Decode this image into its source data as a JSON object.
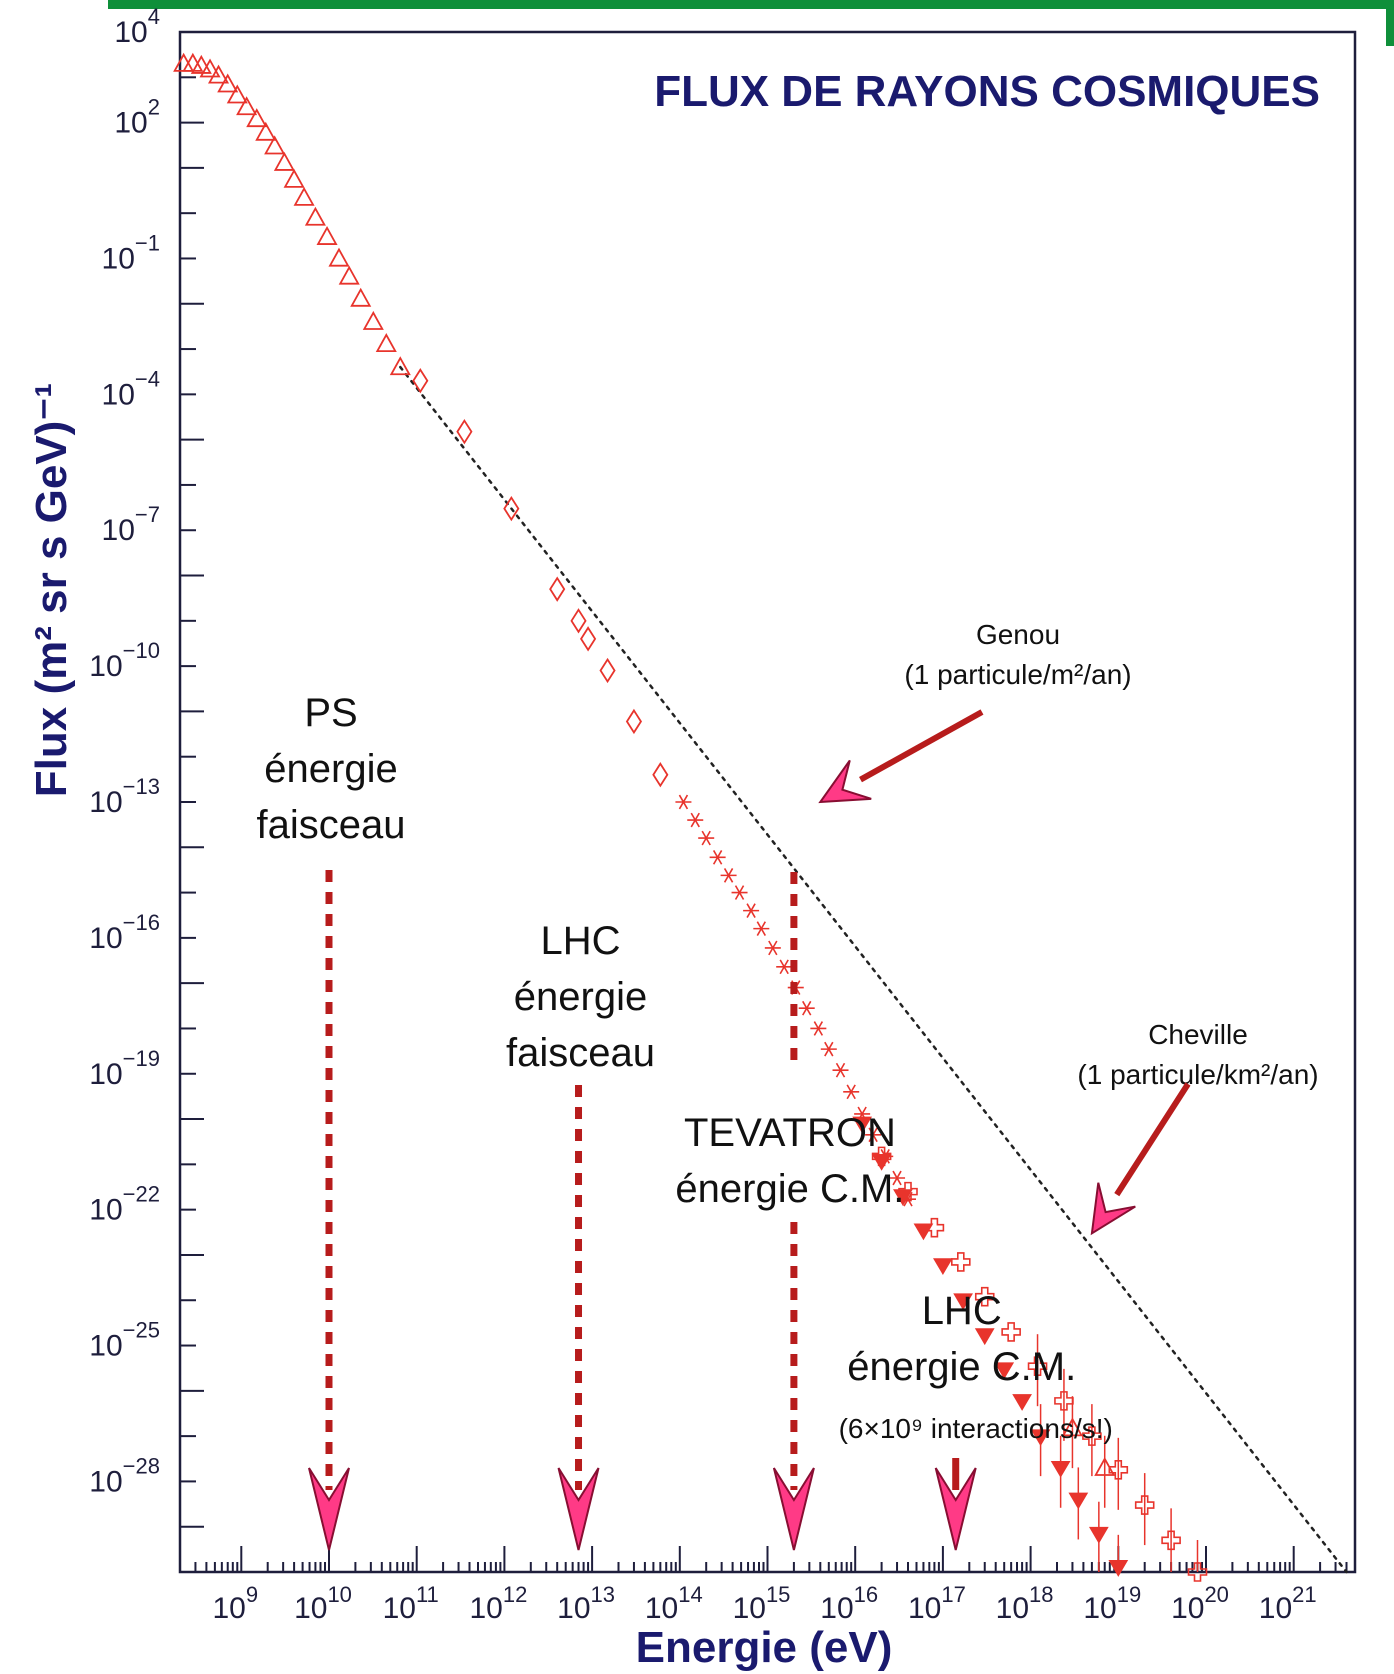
{
  "chart_data": {
    "type": "scatter",
    "title": "FLUX DE RAYONS COSMIQUES",
    "xlabel": "Energie (eV)",
    "ylabel": "Flux (m² sr s GeV)⁻¹",
    "x_scale": "log",
    "y_scale": "log",
    "xlim": [
      200000000.0,
      5e+21
    ],
    "ylim": [
      1e-30,
      10000.0
    ],
    "grid": false,
    "colors": {
      "frame": "#1e1e3c",
      "title": "#1a1a6e",
      "data": "#e8342c",
      "fit": "#222222",
      "dashed_arrow": "#b71c1c",
      "arrow_fill": "#ff3a86",
      "arrow_stroke": "#880e32",
      "top_band": "#0f8f3a"
    },
    "x_ticks": [
      {
        "base": "10",
        "exp": "9",
        "value": 1000000000.0
      },
      {
        "base": "10",
        "exp": "10",
        "value": 10000000000.0
      },
      {
        "base": "10",
        "exp": "11",
        "value": 100000000000.0
      },
      {
        "base": "10",
        "exp": "12",
        "value": 1000000000000.0
      },
      {
        "base": "10",
        "exp": "13",
        "value": 10000000000000.0
      },
      {
        "base": "10",
        "exp": "14",
        "value": 100000000000000.0
      },
      {
        "base": "10",
        "exp": "15",
        "value": 1000000000000000.0
      },
      {
        "base": "10",
        "exp": "16",
        "value": 1e+16
      },
      {
        "base": "10",
        "exp": "17",
        "value": 1e+17
      },
      {
        "base": "10",
        "exp": "18",
        "value": 1e+18
      },
      {
        "base": "10",
        "exp": "19",
        "value": 1e+19
      },
      {
        "base": "10",
        "exp": "20",
        "value": 1e+20
      },
      {
        "base": "10",
        "exp": "21",
        "value": 1e+21
      }
    ],
    "y_ticks": [
      {
        "base": "10",
        "exp": "4",
        "value": 10000.0
      },
      {
        "base": "10",
        "exp": "2",
        "value": 100.0
      },
      {
        "base": "10",
        "exp": "−1",
        "value": 0.1
      },
      {
        "base": "10",
        "exp": "−4",
        "value": 0.0001
      },
      {
        "base": "10",
        "exp": "−7",
        "value": 1e-07
      },
      {
        "base": "10",
        "exp": "−10",
        "value": 1e-10
      },
      {
        "base": "10",
        "exp": "−13",
        "value": 1e-13
      },
      {
        "base": "10",
        "exp": "−16",
        "value": 1e-16
      },
      {
        "base": "10",
        "exp": "−19",
        "value": 1e-19
      },
      {
        "base": "10",
        "exp": "−22",
        "value": 1e-22
      },
      {
        "base": "10",
        "exp": "−25",
        "value": 1e-25
      },
      {
        "base": "10",
        "exp": "−28",
        "value": 1e-28
      }
    ],
    "series": [
      {
        "marker": "triangle-open",
        "points": [
          [
            220000000.0,
            2000
          ],
          [
            280000000.0,
            2000
          ],
          [
            350000000.0,
            1800
          ],
          [
            440000000.0,
            1500
          ],
          [
            550000000.0,
            1100
          ],
          [
            700000000.0,
            700
          ],
          [
            900000000.0,
            400
          ],
          [
            1150000000.0,
            220
          ],
          [
            1500000000.0,
            120
          ],
          [
            1900000000.0,
            60
          ],
          [
            2400000000.0,
            30
          ],
          [
            3100000000.0,
            13
          ],
          [
            4000000000.0,
            5.5
          ],
          [
            5200000000.0,
            2.2
          ],
          [
            7000000000.0,
            0.8
          ],
          [
            9500000000.0,
            0.3
          ],
          [
            13000000000.0,
            0.1
          ],
          [
            17000000000.0,
            0.04
          ],
          [
            23000000000.0,
            0.013
          ],
          [
            32000000000.0,
            0.004
          ],
          [
            45000000000.0,
            0.0013
          ],
          [
            65000000000.0,
            0.0004
          ]
        ]
      },
      {
        "marker": "diamond-open",
        "points": [
          [
            110000000000.0,
            0.0002
          ],
          [
            350000000000.0,
            1.5e-05
          ],
          [
            1200000000000.0,
            3e-07
          ],
          [
            4000000000000.0,
            5e-09
          ],
          [
            7000000000000.0,
            1e-09
          ],
          [
            9000000000000.0,
            4e-10
          ],
          [
            15000000000000.0,
            8e-11
          ],
          [
            30000000000000.0,
            6e-12
          ],
          [
            60000000000000.0,
            4e-13
          ]
        ]
      },
      {
        "marker": "asterisk",
        "points": [
          [
            110000000000000.0,
            1e-13
          ],
          [
            150000000000000.0,
            4e-14
          ],
          [
            200000000000000.0,
            1.6e-14
          ],
          [
            270000000000000.0,
            6e-15
          ],
          [
            360000000000000.0,
            2.4e-15
          ],
          [
            480000000000000.0,
            1e-15
          ],
          [
            650000000000000.0,
            4e-16
          ],
          [
            850000000000000.0,
            1.6e-16
          ],
          [
            1150000000000000.0,
            6e-17
          ],
          [
            1550000000000000.0,
            2.3e-17
          ],
          [
            2100000000000000.0,
            8e-18
          ],
          [
            2800000000000000.0,
            2.8e-18
          ],
          [
            3800000000000000.0,
            1e-18
          ],
          [
            5000000000000000.0,
            3.5e-19
          ],
          [
            6800000000000000.0,
            1.2e-19
          ],
          [
            9000000000000000.0,
            4e-20
          ],
          [
            1.2e+16,
            1.3e-20
          ],
          [
            1.6e+16,
            4.5e-21
          ],
          [
            2.2e+16,
            1.5e-21
          ],
          [
            3e+16,
            5e-22
          ],
          [
            4e+16,
            1.7e-22
          ]
        ]
      },
      {
        "marker": "triangle-down-filled",
        "points": [
          [
            1.2e+16,
            8e-21
          ],
          [
            2e+16,
            1.2e-21
          ],
          [
            3.5e+16,
            2e-22
          ],
          [
            6e+16,
            3.5e-23
          ],
          [
            1e+17,
            6e-24
          ],
          [
            1.7e+17,
            1e-24
          ],
          [
            3e+17,
            1.7e-25
          ],
          [
            5e+17,
            3e-26
          ],
          [
            8e+17,
            6e-27
          ],
          [
            1.3e+18,
            1e-27
          ],
          [
            2.2e+18,
            2e-28
          ],
          [
            3.5e+18,
            4e-29
          ],
          [
            6e+18,
            7e-30
          ],
          [
            1e+19,
            1.3e-30
          ],
          [
            2.5e+20,
            8e-31
          ]
        ]
      },
      {
        "marker": "cross-open",
        "points": [
          [
            2e+16,
            1.5e-21
          ],
          [
            4e+16,
            2.5e-22
          ],
          [
            8e+16,
            4e-23
          ],
          [
            1.6e+17,
            7e-24
          ],
          [
            3e+17,
            1.2e-24
          ],
          [
            6e+17,
            2e-25
          ],
          [
            1.2e+18,
            3.5e-26
          ],
          [
            2.4e+18,
            6e-27
          ],
          [
            5e+18,
            1e-27
          ],
          [
            1e+19,
            1.8e-28
          ],
          [
            2e+19,
            3e-29
          ],
          [
            4e+19,
            5e-30
          ],
          [
            8e+19,
            1e-30
          ]
        ]
      },
      {
        "marker": "triangle-open",
        "points": [
          [
            3e+18,
            1.5e-27
          ],
          [
            7e+18,
            2e-28
          ],
          [
            1.6e+20,
            3e-31
          ]
        ]
      }
    ],
    "fit_line": {
      "from": [
        65000000000.0,
        0.0004
      ],
      "to": [
        4e+21,
        1e-30
      ],
      "style": "dotted"
    },
    "annotations": [
      {
        "lines": [
          "PS",
          "énergie",
          "faisceau"
        ],
        "energy": 10000000000.0
      },
      {
        "lines": [
          "LHC",
          "énergie",
          "faisceau"
        ],
        "energy": 7000000000000.0
      },
      {
        "lines": [
          "TEVATRON",
          "énergie C.M."
        ],
        "energy": 2000000000000000.0
      },
      {
        "lines": [
          "LHC",
          "énergie C.M."
        ],
        "note": "(6×10⁹ interactions/s!)",
        "energy": 1.4e+17
      }
    ],
    "callouts": [
      {
        "label": "Genou",
        "sublabel": "(1 particule/m²/an)",
        "points_to": [
          4000000000000000.0,
          1e-13
        ]
      },
      {
        "label": "Cheville",
        "sublabel": "(1 particule/km²/an)",
        "points_to": [
          5e+18,
          3e-23
        ]
      }
    ]
  }
}
